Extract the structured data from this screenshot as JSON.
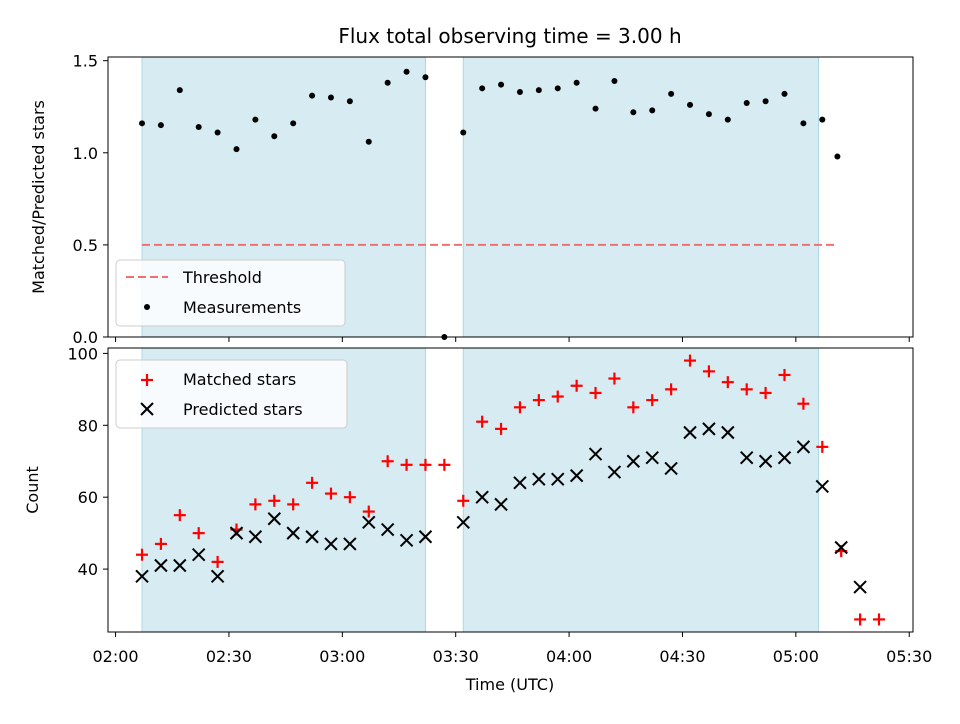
{
  "chart_data": {
    "type": "scatter",
    "title": "Flux total observing time = 3.00 h",
    "xlabel": "Time (UTC)",
    "x_ticks": [
      "02:00",
      "02:30",
      "03:00",
      "03:30",
      "04:00",
      "04:30",
      "05:00",
      "05:30"
    ],
    "x_tick_minutes": [
      120,
      150,
      180,
      210,
      240,
      270,
      300,
      330
    ],
    "xlim": [
      118,
      331
    ],
    "shaded_intervals": [
      [
        127,
        202
      ],
      [
        212,
        306
      ]
    ],
    "top": {
      "ylabel": "Matched/Predicted stars",
      "ylim": [
        0,
        1.52
      ],
      "y_ticks": [
        0.0,
        0.5,
        1.0,
        1.5
      ],
      "y_tick_labels": [
        "0.0",
        "0.5",
        "1.0",
        "1.5"
      ],
      "threshold": {
        "label": "Threshold",
        "value": 0.5,
        "x_range": [
          127,
          311
        ],
        "color": "#f07070"
      },
      "measurements": {
        "label": "Measurements",
        "x": [
          127,
          132,
          137,
          142,
          147,
          152,
          157,
          162,
          167,
          172,
          177,
          182,
          187,
          192,
          197,
          202,
          207,
          212,
          217,
          222,
          227,
          232,
          237,
          242,
          247,
          252,
          257,
          262,
          267,
          272,
          277,
          282,
          287,
          292,
          297,
          302,
          307,
          311
        ],
        "y": [
          1.16,
          1.15,
          1.34,
          1.14,
          1.11,
          1.02,
          1.18,
          1.09,
          1.16,
          1.31,
          1.3,
          1.28,
          1.06,
          1.38,
          1.44,
          1.41,
          0.0,
          1.11,
          1.35,
          1.37,
          1.33,
          1.34,
          1.35,
          1.38,
          1.24,
          1.39,
          1.22,
          1.23,
          1.32,
          1.26,
          1.21,
          1.18,
          1.27,
          1.28,
          1.32,
          1.16,
          1.18,
          0.98
        ]
      }
    },
    "bottom": {
      "ylabel": "Count",
      "ylim": [
        22.5,
        101.5
      ],
      "y_ticks": [
        40,
        60,
        80,
        100
      ],
      "y_tick_labels": [
        "40",
        "60",
        "80",
        "100"
      ],
      "series": [
        {
          "name": "Matched stars",
          "marker": "plus",
          "color": "#ff0000",
          "x": [
            127,
            132,
            137,
            142,
            147,
            152,
            157,
            162,
            167,
            172,
            177,
            182,
            187,
            192,
            197,
            202,
            207,
            212,
            217,
            222,
            227,
            232,
            237,
            242,
            247,
            252,
            257,
            262,
            267,
            272,
            277,
            282,
            287,
            292,
            297,
            302,
            307,
            312,
            317,
            322
          ],
          "y": [
            44,
            47,
            55,
            50,
            42,
            51,
            58,
            59,
            58,
            64,
            61,
            60,
            56,
            70,
            69,
            69,
            69,
            59,
            81,
            79,
            85,
            87,
            88,
            91,
            89,
            93,
            85,
            87,
            90,
            98,
            95,
            92,
            90,
            89,
            94,
            86,
            74,
            45,
            26,
            26
          ]
        },
        {
          "name": "Predicted stars",
          "marker": "x",
          "color": "#000000",
          "x": [
            127,
            132,
            137,
            142,
            147,
            152,
            157,
            162,
            167,
            172,
            177,
            182,
            187,
            192,
            197,
            202,
            212,
            217,
            222,
            227,
            232,
            237,
            242,
            247,
            252,
            257,
            262,
            267,
            272,
            277,
            282,
            287,
            292,
            297,
            302,
            307,
            312,
            317
          ],
          "y": [
            38,
            41,
            41,
            44,
            38,
            50,
            49,
            54,
            50,
            49,
            47,
            47,
            53,
            51,
            48,
            49,
            53,
            60,
            58,
            64,
            65,
            65,
            66,
            72,
            67,
            70,
            71,
            68,
            78,
            79,
            78,
            71,
            70,
            71,
            74,
            63,
            46,
            35
          ]
        }
      ]
    },
    "colors": {
      "shade": "#add8e6",
      "axis": "#000000",
      "legend_bg": "#ffffff"
    }
  }
}
